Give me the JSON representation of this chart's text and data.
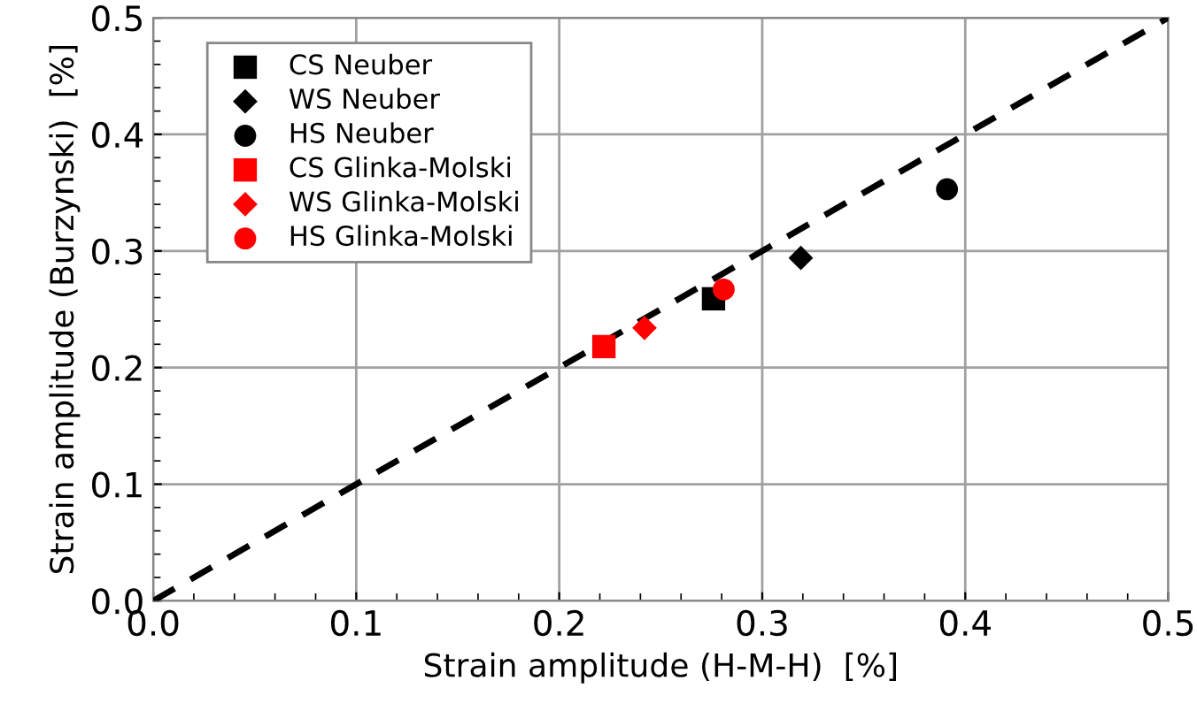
{
  "chart_data": {
    "type": "scatter",
    "xlabel": "Strain amplitude (H-M-H)  [%]",
    "ylabel": "Strain amplitude (Burzynski)  [%]",
    "xlim": [
      0,
      0.5
    ],
    "ylim": [
      0,
      0.5
    ],
    "xticks": [
      {
        "value": 0,
        "label": "0.0"
      },
      0.1,
      0.2,
      0.3,
      0.4,
      0.5
    ],
    "yticks": [
      {
        "value": 0,
        "label": "0.0"
      },
      0.1,
      0.2,
      0.3,
      0.4,
      0.5
    ],
    "grid": true,
    "legend": "top left",
    "series": [
      {
        "name": "CS Neuber",
        "color": "#000000",
        "marker": "square",
        "x": [
          0.276
        ],
        "values": [
          0.259
        ]
      },
      {
        "name": "WS Neuber",
        "color": "#000000",
        "marker": "diamond",
        "x": [
          0.319
        ],
        "values": [
          0.294
        ]
      },
      {
        "name": "HS Neuber",
        "color": "#000000",
        "marker": "circle",
        "x": [
          0.391
        ],
        "values": [
          0.353
        ]
      },
      {
        "name": "CS Glinka-Molski",
        "color": "#ff0000",
        "marker": "square",
        "x": [
          0.222
        ],
        "values": [
          0.218
        ]
      },
      {
        "name": "WS Glinka-Molski",
        "color": "#ff0000",
        "marker": "diamond",
        "x": [
          0.242
        ],
        "values": [
          0.234
        ]
      },
      {
        "name": "HS Glinka-Molski",
        "color": "#ff0000",
        "marker": "circle",
        "x": [
          0.281
        ],
        "values": [
          0.267
        ]
      },
      {
        "type": "line",
        "color": "#000000",
        "line_style": "dashed",
        "marker": "none",
        "x": [
          0,
          0.5
        ],
        "values": [
          0,
          0.5
        ]
      }
    ]
  }
}
